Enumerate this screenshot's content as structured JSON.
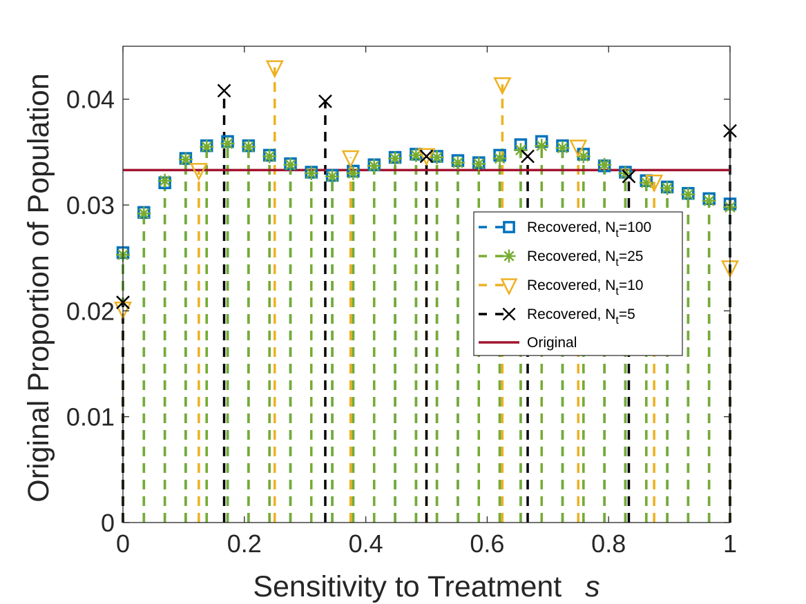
{
  "chart_data": {
    "type": "scatter",
    "xlabel": "Sensitivity to Treatment",
    "xlabel_symbol": "s",
    "ylabel": "Original Proportion of Population",
    "xlim": [
      0,
      1
    ],
    "ylim": [
      0,
      0.045
    ],
    "xticks": [
      0,
      0.2,
      0.4,
      0.6,
      0.8,
      1
    ],
    "xtick_labels": [
      "0",
      "0.2",
      "0.4",
      "0.6",
      "0.8",
      "1"
    ],
    "yticks": [
      0,
      0.01,
      0.02,
      0.03,
      0.04
    ],
    "ytick_labels": [
      "0",
      "0.01",
      "0.02",
      "0.03",
      "0.04"
    ],
    "grid": false,
    "box": true,
    "legend_position": "center-right",
    "series": [
      {
        "name": "Recovered, N",
        "subscript": "t",
        "suffix": "=100",
        "marker": "square",
        "style": "stem-dashed",
        "color": "#0072BD",
        "x": [
          0,
          0.0345,
          0.069,
          0.1034,
          0.1379,
          0.1724,
          0.2069,
          0.2414,
          0.2759,
          0.3103,
          0.3448,
          0.3793,
          0.4138,
          0.4483,
          0.4828,
          0.5172,
          0.5517,
          0.5862,
          0.6207,
          0.6552,
          0.6897,
          0.7241,
          0.7586,
          0.7931,
          0.8276,
          0.8621,
          0.8966,
          0.931,
          0.9655,
          1
        ],
        "y": [
          0.0255,
          0.0293,
          0.0321,
          0.0344,
          0.0356,
          0.036,
          0.0356,
          0.0347,
          0.0339,
          0.0331,
          0.0328,
          0.0332,
          0.0338,
          0.0345,
          0.0348,
          0.0346,
          0.0342,
          0.034,
          0.0347,
          0.0357,
          0.036,
          0.0356,
          0.0348,
          0.0337,
          0.0331,
          0.0323,
          0.0317,
          0.0311,
          0.0306,
          0.0301
        ]
      },
      {
        "name": "Recovered, N",
        "subscript": "t",
        "suffix": "=25",
        "marker": "asterisk",
        "style": "stem-dashed",
        "color": "#77AC30",
        "x": [
          0,
          0.0345,
          0.069,
          0.1034,
          0.1379,
          0.1724,
          0.2069,
          0.2414,
          0.2759,
          0.3103,
          0.3448,
          0.3793,
          0.4138,
          0.4483,
          0.4828,
          0.5172,
          0.5517,
          0.5862,
          0.6207,
          0.6552,
          0.6897,
          0.7241,
          0.7586,
          0.7931,
          0.8276,
          0.8621,
          0.8966,
          0.931,
          0.9655,
          1
        ],
        "y": [
          0.0253,
          0.0292,
          0.0323,
          0.0343,
          0.0355,
          0.0358,
          0.0355,
          0.0346,
          0.0338,
          0.033,
          0.0327,
          0.033,
          0.0337,
          0.0344,
          0.0347,
          0.0345,
          0.034,
          0.0339,
          0.0344,
          0.0352,
          0.0356,
          0.0354,
          0.0346,
          0.0338,
          0.033,
          0.0321,
          0.0316,
          0.031,
          0.0304,
          0.0298
        ]
      },
      {
        "name": "Recovered, N",
        "subscript": "t",
        "suffix": "=10",
        "marker": "triangle-down",
        "style": "stem-dashed",
        "color": "#EDB120",
        "x": [
          0,
          0.125,
          0.25,
          0.375,
          0.5,
          0.625,
          0.75,
          0.875,
          1
        ],
        "y": [
          0.0202,
          0.0333,
          0.043,
          0.0345,
          0.0347,
          0.0414,
          0.0355,
          0.0322,
          0.0241
        ]
      },
      {
        "name": "Recovered, N",
        "subscript": "t",
        "suffix": "=5",
        "marker": "x",
        "style": "stem-dashed",
        "color": "#000000",
        "x": [
          0,
          0.1667,
          0.3333,
          0.5,
          0.6667,
          0.8333,
          1
        ],
        "y": [
          0.0208,
          0.0408,
          0.0398,
          0.0346,
          0.0346,
          0.0327,
          0.037
        ]
      },
      {
        "name": "Original",
        "marker": "none",
        "style": "line",
        "color": "#A2142F",
        "x": [
          0,
          1
        ],
        "y": [
          0.0333,
          0.0333
        ]
      }
    ]
  }
}
